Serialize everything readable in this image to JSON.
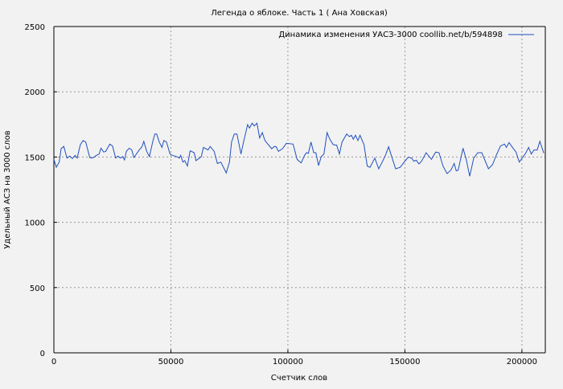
{
  "chart_data": {
    "type": "line",
    "title": "Легенда о яблоке. Часть 1 ( Ана Ховская)",
    "xlabel": "Счетчик слов",
    "ylabel": "Удельный АСЗ на 3000 слов",
    "xlim": [
      0,
      210000
    ],
    "ylim": [
      0,
      2500
    ],
    "xticks": [
      0,
      50000,
      100000,
      150000,
      200000
    ],
    "xtick_labels": [
      "0",
      "50000",
      "100000",
      "150000",
      "200000"
    ],
    "yticks": [
      0,
      500,
      1000,
      1500,
      2000,
      2500
    ],
    "ytick_labels": [
      "0",
      "500",
      "1000",
      "1500",
      "2000",
      "2500"
    ],
    "grid": true,
    "legend_position": "top-right",
    "series": [
      {
        "name": "Динамика изменения УАСЗ-3000 coollib.net/b/594898",
        "color": "#1f4fbf",
        "x": [
          0,
          1030,
          2270,
          3090,
          4230,
          5600,
          6750,
          7890,
          9040,
          9950,
          11320,
          12470,
          13600,
          15330,
          16470,
          18180,
          19330,
          20130,
          21270,
          22180,
          23900,
          25040,
          26410,
          27340,
          28470,
          29400,
          30190,
          30970,
          32250,
          33280,
          34190,
          36470,
          37630,
          38420,
          39680,
          40820,
          42200,
          43130,
          43910,
          45040,
          46210,
          47000,
          48130,
          49640,
          50770,
          52490,
          53620,
          54200,
          55130,
          55920,
          57060,
          58210,
          59930,
          60720,
          62200,
          63010,
          63910,
          65870,
          66790,
          68510,
          69880,
          71360,
          73650,
          75030,
          75930,
          77100,
          78220,
          79930,
          81060,
          82780,
          83600,
          84730,
          85660,
          86790,
          87920,
          89060,
          90190,
          93070,
          94230,
          95010,
          95960,
          97670,
          99380,
          102230,
          103950,
          105660,
          107140,
          107960,
          108750,
          109880,
          111050,
          111940,
          113100,
          114240,
          115370,
          116740,
          117920,
          119380,
          120860,
          122020,
          123160,
          125110,
          126240,
          127180,
          127960,
          128880,
          129910,
          130810,
          132520,
          133890,
          135060,
          137120,
          138830,
          140310,
          141680,
          143050,
          144190,
          146040,
          147950,
          149680,
          151390,
          152890,
          153800,
          154830,
          155990,
          157120,
          159080,
          161340,
          163170,
          164550,
          166270,
          167990,
          169700,
          171070,
          171960,
          172790,
          174840,
          176220,
          177700,
          179420,
          181130,
          182850,
          185700,
          187410,
          189130,
          190840,
          192550,
          193380,
          194510,
          195990,
          197490,
          198870,
          200580,
          201720,
          202850,
          204010,
          205150,
          206520,
          207650,
          209370
        ],
        "y": [
          1482,
          1422,
          1461,
          1564,
          1581,
          1492,
          1507,
          1488,
          1513,
          1492,
          1595,
          1626,
          1615,
          1496,
          1492,
          1513,
          1523,
          1568,
          1538,
          1544,
          1599,
          1585,
          1492,
          1507,
          1492,
          1503,
          1478,
          1544,
          1568,
          1554,
          1496,
          1554,
          1579,
          1620,
          1544,
          1503,
          1615,
          1677,
          1677,
          1615,
          1574,
          1626,
          1615,
          1523,
          1513,
          1503,
          1492,
          1513,
          1461,
          1472,
          1431,
          1548,
          1533,
          1472,
          1492,
          1503,
          1574,
          1554,
          1581,
          1544,
          1451,
          1461,
          1379,
          1461,
          1615,
          1677,
          1677,
          1523,
          1615,
          1749,
          1722,
          1759,
          1738,
          1759,
          1646,
          1687,
          1626,
          1564,
          1581,
          1579,
          1544,
          1564,
          1605,
          1599,
          1482,
          1455,
          1513,
          1533,
          1529,
          1615,
          1533,
          1533,
          1435,
          1503,
          1523,
          1687,
          1636,
          1595,
          1591,
          1523,
          1615,
          1677,
          1657,
          1667,
          1636,
          1667,
          1626,
          1667,
          1595,
          1431,
          1421,
          1492,
          1410,
          1461,
          1513,
          1579,
          1513,
          1410,
          1421,
          1461,
          1498,
          1492,
          1468,
          1476,
          1447,
          1468,
          1533,
          1482,
          1538,
          1533,
          1431,
          1373,
          1400,
          1451,
          1394,
          1400,
          1568,
          1482,
          1353,
          1492,
          1533,
          1533,
          1410,
          1441,
          1517,
          1585,
          1599,
          1574,
          1611,
          1574,
          1538,
          1461,
          1503,
          1533,
          1574,
          1523,
          1554,
          1554,
          1620,
          1529
        ]
      }
    ]
  }
}
